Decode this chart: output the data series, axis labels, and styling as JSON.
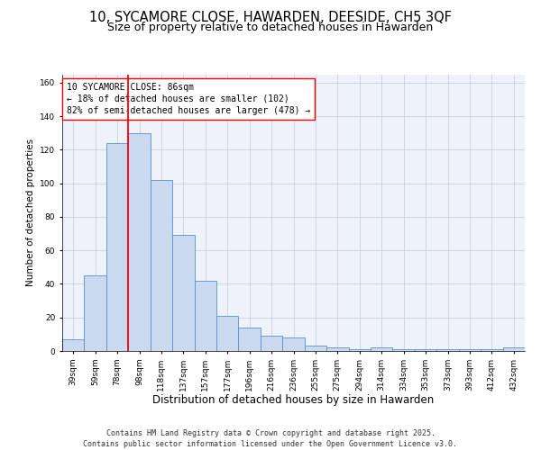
{
  "title": "10, SYCAMORE CLOSE, HAWARDEN, DEESIDE, CH5 3QF",
  "subtitle": "Size of property relative to detached houses in Hawarden",
  "xlabel": "Distribution of detached houses by size in Hawarden",
  "ylabel": "Number of detached properties",
  "bar_labels": [
    "39sqm",
    "59sqm",
    "78sqm",
    "98sqm",
    "118sqm",
    "137sqm",
    "157sqm",
    "177sqm",
    "196sqm",
    "216sqm",
    "236sqm",
    "255sqm",
    "275sqm",
    "294sqm",
    "314sqm",
    "334sqm",
    "353sqm",
    "373sqm",
    "393sqm",
    "412sqm",
    "432sqm"
  ],
  "bar_heights": [
    7,
    45,
    124,
    130,
    102,
    69,
    42,
    21,
    14,
    9,
    8,
    3,
    2,
    1,
    2,
    1,
    1,
    1,
    1,
    1,
    2
  ],
  "ylim": [
    0,
    165
  ],
  "yticks": [
    0,
    20,
    40,
    60,
    80,
    100,
    120,
    140,
    160
  ],
  "bar_color": "#c9d9f0",
  "bar_edge_color": "#5b8fc9",
  "grid_color": "#c8d0e0",
  "background_color": "#eef2fa",
  "vline_color": "red",
  "annotation_text": "10 SYCAMORE CLOSE: 86sqm\n← 18% of detached houses are smaller (102)\n82% of semi-detached houses are larger (478) →",
  "annotation_box_color": "white",
  "annotation_box_edge": "red",
  "footer": "Contains HM Land Registry data © Crown copyright and database right 2025.\nContains public sector information licensed under the Open Government Licence v3.0.",
  "title_fontsize": 10.5,
  "subtitle_fontsize": 9,
  "xlabel_fontsize": 8.5,
  "ylabel_fontsize": 7.5,
  "tick_fontsize": 6.5,
  "annotation_fontsize": 7,
  "footer_fontsize": 6
}
